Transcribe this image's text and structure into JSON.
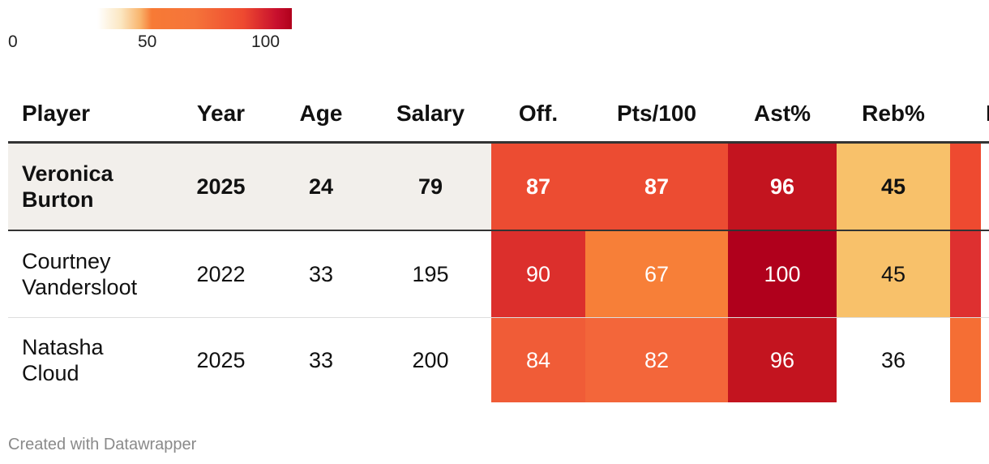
{
  "legend": {
    "ticks": [
      {
        "label": "0",
        "value": 0
      },
      {
        "label": "50",
        "value": 50
      },
      {
        "label": "100",
        "value": 100
      }
    ]
  },
  "chart_data": {
    "type": "table",
    "columns": [
      "Player",
      "Year",
      "Age",
      "Salary",
      "Off.",
      "Pts/100",
      "Ast%",
      "Reb%",
      ""
    ],
    "heatmap_columns": [
      "Off.",
      "Pts/100",
      "Ast%",
      "Reb%"
    ],
    "color_scale": {
      "min": 0,
      "max": 100,
      "colors": [
        "#ffffff",
        "#f9c06a",
        "#f77a35",
        "#ee4a30",
        "#b0001c"
      ]
    },
    "rows": [
      {
        "player": "Veronica\nBurton",
        "year": "2025",
        "age": "24",
        "salary": "79",
        "off": 87,
        "pts100": 87,
        "ast": 96,
        "reb": 45,
        "highlight": true
      },
      {
        "player": "Courtney\nVandersloot",
        "year": "2022",
        "age": "33",
        "salary": "195",
        "off": 90,
        "pts100": 67,
        "ast": 100,
        "reb": 45,
        "highlight": false
      },
      {
        "player": "Natasha\nCloud",
        "year": "2025",
        "age": "33",
        "salary": "200",
        "off": 84,
        "pts100": 82,
        "ast": 96,
        "reb": 36,
        "highlight": false
      }
    ],
    "partial_column_colors": [
      "#ee4a30",
      "#de3030",
      "#f56e34"
    ],
    "partial_column_header": "I"
  },
  "credit": "Created with Datawrapper",
  "colors": {
    "highlight_row_bg": "#f2efeb",
    "header_rule": "#333333"
  }
}
